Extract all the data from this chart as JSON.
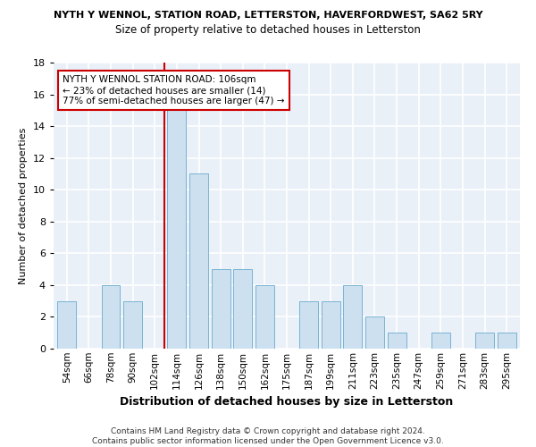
{
  "title": "NYTH Y WENNOL, STATION ROAD, LETTERSTON, HAVERFORDWEST, SA62 5RY",
  "subtitle": "Size of property relative to detached houses in Letterston",
  "xlabel": "Distribution of detached houses by size in Letterston",
  "ylabel": "Number of detached properties",
  "bar_labels": [
    "54sqm",
    "66sqm",
    "78sqm",
    "90sqm",
    "102sqm",
    "114sqm",
    "126sqm",
    "138sqm",
    "150sqm",
    "162sqm",
    "175sqm",
    "187sqm",
    "199sqm",
    "211sqm",
    "223sqm",
    "235sqm",
    "247sqm",
    "259sqm",
    "271sqm",
    "283sqm",
    "295sqm"
  ],
  "bar_values": [
    3,
    0,
    4,
    3,
    0,
    15,
    11,
    5,
    5,
    4,
    0,
    3,
    3,
    4,
    2,
    1,
    0,
    1,
    0,
    1,
    1
  ],
  "bar_color": "#cce0f0",
  "bar_edge_color": "#7ab3d4",
  "highlight_line_idx": 4,
  "highlight_line_color": "#cc0000",
  "annotation_text": "NYTH Y WENNOL STATION ROAD: 106sqm\n← 23% of detached houses are smaller (14)\n77% of semi-detached houses are larger (47) →",
  "annotation_box_color": "#ffffff",
  "annotation_box_edge": "#cc0000",
  "ylim": [
    0,
    18
  ],
  "yticks": [
    0,
    2,
    4,
    6,
    8,
    10,
    12,
    14,
    16,
    18
  ],
  "footer": "Contains HM Land Registry data © Crown copyright and database right 2024.\nContains public sector information licensed under the Open Government Licence v3.0.",
  "bg_color": "#eaf0f8"
}
